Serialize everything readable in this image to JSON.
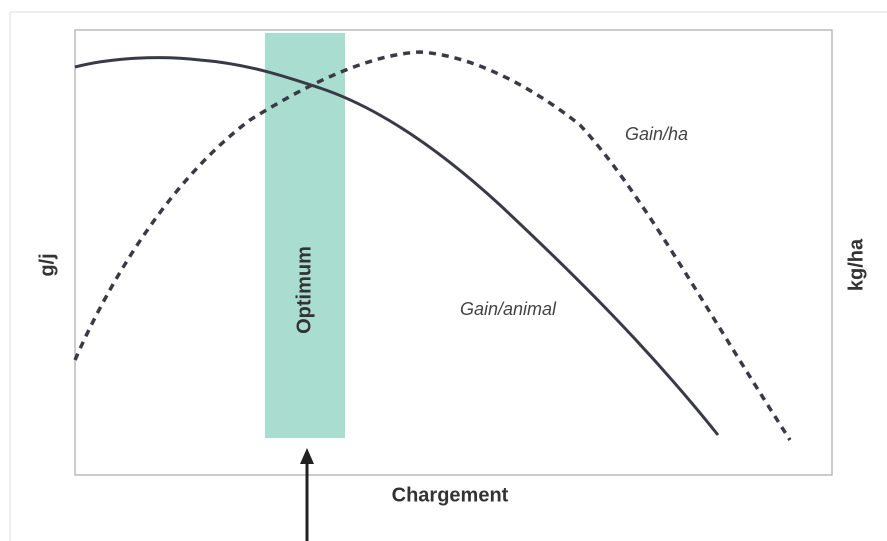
{
  "axes": {
    "y_left": "g/j",
    "y_right": "kg/ha",
    "x": "Chargement"
  },
  "curves": {
    "per_ha": "Gain/ha",
    "per_animal": "Gain/animal"
  },
  "band": {
    "label": "Optimum"
  }
}
